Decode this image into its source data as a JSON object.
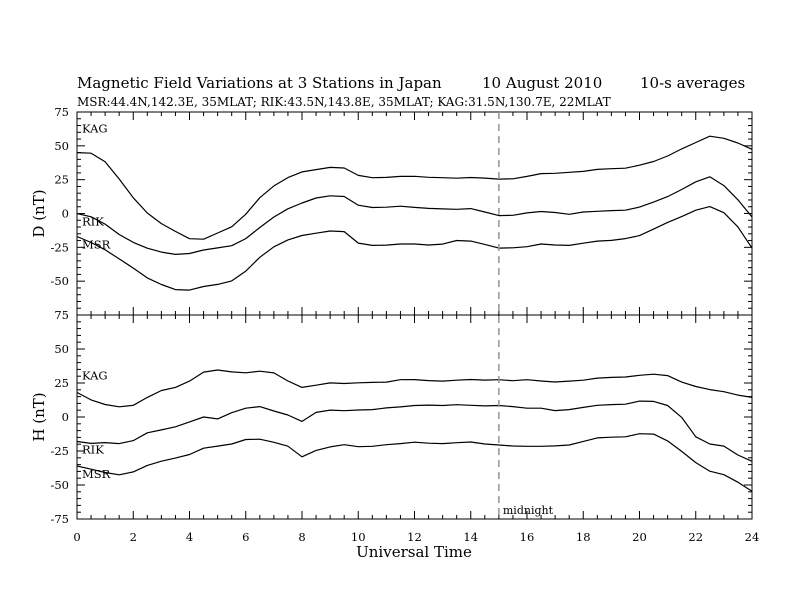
{
  "header": {
    "title_left": "Magnetic Field Variations at 3 Stations in Japan",
    "title_date": "10 August  2010",
    "title_right": "10-s averages",
    "subtitle": "MSR:44.4N,142.3E, 35MLAT;   RIK:43.5N,143.8E, 35MLAT;   KAG:31.5N,130.7E, 22MLAT"
  },
  "chart_data": {
    "type": "line",
    "xlabel": "Universal Time",
    "xlim": [
      0,
      24
    ],
    "xticks": [
      0,
      2,
      4,
      6,
      8,
      10,
      12,
      14,
      16,
      18,
      20,
      22,
      24
    ],
    "annotation": {
      "x": 15,
      "label": "midnight",
      "style": "dashed-vertical"
    },
    "panels": [
      {
        "id": "D",
        "ylabel": "D (nT)",
        "ylim": [
          -75,
          75
        ],
        "yticks": [
          -75,
          -50,
          -25,
          0,
          25,
          50,
          75
        ],
        "series": [
          {
            "name": "KAG",
            "x": [
              0,
              0.5,
              1,
              1.5,
              2,
              2.5,
              3,
              3.5,
              4,
              4.5,
              5,
              5.5,
              6,
              6.5,
              7,
              7.5,
              8,
              8.5,
              9,
              9.5,
              10,
              10.5,
              11,
              11.5,
              12,
              12.5,
              13,
              13.5,
              14,
              14.5,
              15,
              15.5,
              16,
              16.5,
              17,
              17.5,
              18,
              18.5,
              19,
              19.5,
              20,
              20.5,
              21,
              21.5,
              22,
              22.5,
              23,
              23.5,
              24
            ],
            "values": [
              45,
              44,
              38,
              26,
              12,
              0,
              -8,
              -13,
              -18,
              -19,
              -15,
              -10,
              0,
              12,
              20,
              26,
              31,
              33,
              34,
              33,
              28,
              27,
              27,
              27,
              27,
              27,
              27,
              26,
              26,
              26,
              26,
              26,
              27,
              29,
              30,
              31,
              31,
              32,
              33,
              34,
              36,
              38,
              42,
              48,
              53,
              57,
              55,
              52,
              48
            ]
          },
          {
            "name": "RIK",
            "x": [
              0,
              0.5,
              1,
              1.5,
              2,
              2.5,
              3,
              3.5,
              4,
              4.5,
              5,
              5.5,
              6,
              6.5,
              7,
              7.5,
              8,
              8.5,
              9,
              9.5,
              10,
              10.5,
              11,
              11.5,
              12,
              12.5,
              13,
              13.5,
              14,
              14.5,
              15,
              15.5,
              16,
              16.5,
              17,
              17.5,
              18,
              18.5,
              19,
              19.5,
              20,
              20.5,
              21,
              21.5,
              22,
              22.5,
              23,
              23.5,
              24
            ],
            "values": [
              0,
              -3,
              -8,
              -15,
              -21,
              -26,
              -29,
              -30,
              -29,
              -27,
              -26,
              -24,
              -18,
              -10,
              -3,
              3,
              8,
              12,
              13,
              12,
              6,
              5,
              5,
              5,
              4,
              4,
              4,
              3,
              3,
              1,
              -1,
              -1,
              0,
              1,
              1,
              0,
              1,
              1,
              2,
              3,
              5,
              8,
              12,
              18,
              24,
              27,
              20,
              10,
              -2
            ]
          },
          {
            "name": "MSR",
            "x": [
              0,
              0.5,
              1,
              1.5,
              2,
              2.5,
              3,
              3.5,
              4,
              4.5,
              5,
              5.5,
              6,
              6.5,
              7,
              7.5,
              8,
              8.5,
              9,
              9.5,
              10,
              10.5,
              11,
              11.5,
              12,
              12.5,
              13,
              13.5,
              14,
              14.5,
              15,
              15.5,
              16,
              16.5,
              17,
              17.5,
              18,
              18.5,
              19,
              19.5,
              20,
              20.5,
              21,
              21.5,
              22,
              22.5,
              23,
              23.5,
              24
            ],
            "values": [
              -17,
              -22,
              -27,
              -33,
              -40,
              -48,
              -53,
              -56,
              -56,
              -54,
              -53,
              -50,
              -42,
              -32,
              -25,
              -20,
              -16,
              -14,
              -13,
              -14,
              -22,
              -23,
              -23,
              -23,
              -23,
              -23,
              -22,
              -20,
              -21,
              -23,
              -25,
              -25,
              -25,
              -23,
              -23,
              -23,
              -22,
              -21,
              -20,
              -18,
              -16,
              -12,
              -7,
              -2,
              3,
              5,
              0,
              -10,
              -25
            ]
          }
        ]
      },
      {
        "id": "H",
        "ylabel": "H (nT)",
        "ylim": [
          -75,
          75
        ],
        "yticks": [
          -75,
          -50,
          -25,
          0,
          25,
          50,
          75
        ],
        "series": [
          {
            "name": "KAG",
            "x": [
              0,
              0.5,
              1,
              1.5,
              2,
              2.5,
              3,
              3.5,
              4,
              4.5,
              5,
              5.5,
              6,
              6.5,
              7,
              7.5,
              8,
              8.5,
              9,
              9.5,
              10,
              10.5,
              11,
              11.5,
              12,
              12.5,
              13,
              13.5,
              14,
              14.5,
              15,
              15.5,
              16,
              16.5,
              17,
              17.5,
              18,
              18.5,
              19,
              19.5,
              20,
              20.5,
              21,
              21.5,
              22,
              22.5,
              23,
              23.5,
              24
            ],
            "values": [
              18,
              12,
              9,
              8,
              9,
              14,
              19,
              22,
              27,
              33,
              34,
              33,
              33,
              34,
              32,
              26,
              22,
              24,
              25,
              24,
              25,
              26,
              26,
              27,
              27,
              27,
              27,
              27,
              27,
              27,
              28,
              27,
              27,
              26,
              26,
              27,
              27,
              28,
              29,
              30,
              31,
              31,
              30,
              26,
              23,
              20,
              18,
              16,
              15
            ]
          },
          {
            "name": "RIK",
            "x": [
              0,
              0.5,
              1,
              1.5,
              2,
              2.5,
              3,
              3.5,
              4,
              4.5,
              5,
              5.5,
              6,
              6.5,
              7,
              7.5,
              8,
              8.5,
              9,
              9.5,
              10,
              10.5,
              11,
              11.5,
              12,
              12.5,
              13,
              13.5,
              14,
              14.5,
              15,
              15.5,
              16,
              16.5,
              17,
              17.5,
              18,
              18.5,
              19,
              19.5,
              20,
              20.5,
              21,
              21.5,
              22,
              22.5,
              23,
              23.5,
              24
            ],
            "values": [
              -18,
              -20,
              -19,
              -19,
              -17,
              -12,
              -10,
              -7,
              -3,
              0,
              -2,
              3,
              7,
              8,
              4,
              1,
              -3,
              4,
              5,
              4,
              5,
              6,
              7,
              7,
              8,
              9,
              9,
              9,
              8,
              8,
              9,
              8,
              6,
              6,
              5,
              6,
              7,
              8,
              9,
              10,
              12,
              11,
              8,
              0,
              -14,
              -20,
              -22,
              -28,
              -32
            ]
          },
          {
            "name": "MSR",
            "x": [
              0,
              0.5,
              1,
              1.5,
              2,
              2.5,
              3,
              3.5,
              4,
              4.5,
              5,
              5.5,
              6,
              6.5,
              7,
              7.5,
              8,
              8.5,
              9,
              9.5,
              10,
              10.5,
              11,
              11.5,
              12,
              12.5,
              13,
              13.5,
              14,
              14.5,
              15,
              15.5,
              16,
              16.5,
              17,
              17.5,
              18,
              18.5,
              19,
              19.5,
              20,
              20.5,
              21,
              21.5,
              22,
              22.5,
              23,
              23.5,
              24
            ],
            "values": [
              -36,
              -39,
              -41,
              -42,
              -40,
              -36,
              -33,
              -30,
              -27,
              -23,
              -22,
              -20,
              -16,
              -16,
              -19,
              -22,
              -29,
              -24,
              -22,
              -21,
              -22,
              -21,
              -20,
              -20,
              -19,
              -19,
              -19,
              -19,
              -19,
              -20,
              -20,
              -21,
              -22,
              -22,
              -21,
              -20,
              -18,
              -16,
              -15,
              -14,
              -12,
              -13,
              -18,
              -25,
              -33,
              -40,
              -43,
              -48,
              -54
            ]
          }
        ]
      }
    ]
  }
}
